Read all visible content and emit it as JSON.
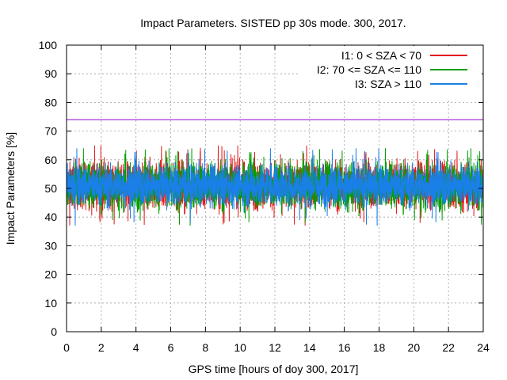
{
  "chart_data": {
    "type": "line",
    "title": "Impact Parameters. SISTED pp 30s mode. 300, 2017.",
    "xlabel": "GPS time [hours of doy 300, 2017]",
    "ylabel": "Impact Parameters [%]",
    "xlim": [
      0,
      24
    ],
    "ylim": [
      0,
      100
    ],
    "xticks": [
      "0",
      "2",
      "4",
      "6",
      "8",
      "10",
      "12",
      "14",
      "16",
      "18",
      "20",
      "22",
      "24"
    ],
    "yticks": [
      "0",
      "10",
      "20",
      "30",
      "40",
      "50",
      "60",
      "70",
      "80",
      "90",
      "100"
    ],
    "grid": true,
    "legend_position": "top-right",
    "reference_line": {
      "y": 74,
      "color": "#9400d3"
    },
    "series": [
      {
        "name": "I1: 0 < SZA < 70",
        "color": "#e41a1c",
        "mean": 51,
        "typical_min": 43,
        "typical_max": 59,
        "extreme_min": 36,
        "extreme_max": 65
      },
      {
        "name": "I2: 70 <= SZA <= 110",
        "color": "#00a000",
        "mean": 51,
        "typical_min": 43,
        "typical_max": 59,
        "extreme_min": 36,
        "extreme_max": 64
      },
      {
        "name": "I3: SZA > 110",
        "color": "#1a7fe6",
        "mean": 51,
        "typical_min": 44,
        "typical_max": 58,
        "extreme_min": 36,
        "extreme_max": 64
      }
    ]
  }
}
